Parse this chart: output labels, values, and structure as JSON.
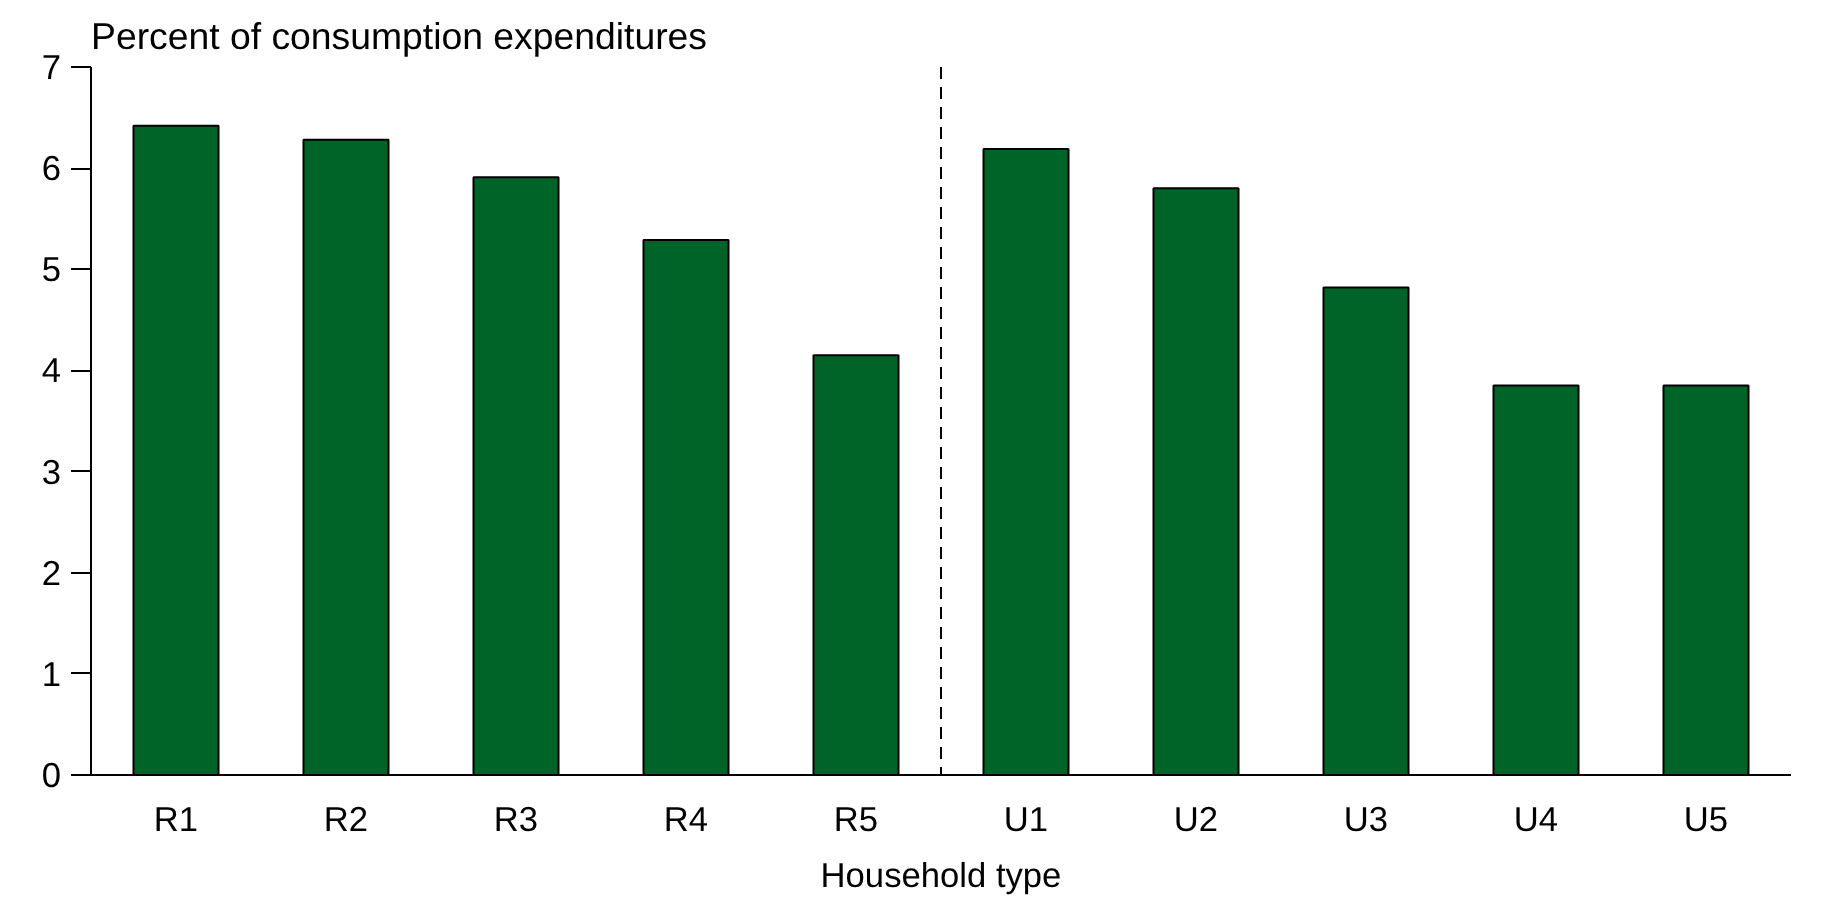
{
  "chart_data": {
    "type": "bar",
    "title": "Percent of consumption expenditures",
    "xlabel": "Household type",
    "categories": [
      "R1",
      "R2",
      "R3",
      "R4",
      "R5",
      "U1",
      "U2",
      "U3",
      "U4",
      "U5"
    ],
    "values": [
      6.42,
      6.28,
      5.91,
      5.29,
      4.15,
      6.19,
      5.8,
      4.82,
      3.85,
      3.85
    ],
    "color": "#006428",
    "ylim": [
      0,
      7
    ],
    "yticks": [
      0,
      1,
      2,
      3,
      4,
      5,
      6,
      7
    ],
    "grid": false
  }
}
